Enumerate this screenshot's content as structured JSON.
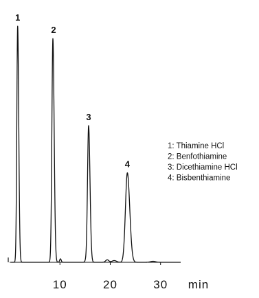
{
  "chart_data": {
    "type": "line",
    "title": "",
    "xlabel": "",
    "ylabel": "",
    "x_unit": "min",
    "xlim": [
      0,
      34
    ],
    "x_ticks": [
      10,
      20,
      30
    ],
    "grid": false,
    "legend_placement": "right",
    "peaks": [
      {
        "label": "1",
        "time": 1.6,
        "height": 0.95
      },
      {
        "label": "2",
        "time": 8.6,
        "height": 0.9
      },
      {
        "label": "3",
        "time": 15.7,
        "height": 0.55
      },
      {
        "label": "4",
        "time": 23.4,
        "height": 0.36
      }
    ],
    "legend": [
      "1: Thiamine HCl",
      "2: Benfothiamine",
      "3: Dicethiamine HCl",
      "4: Bisbenthiamine"
    ]
  }
}
